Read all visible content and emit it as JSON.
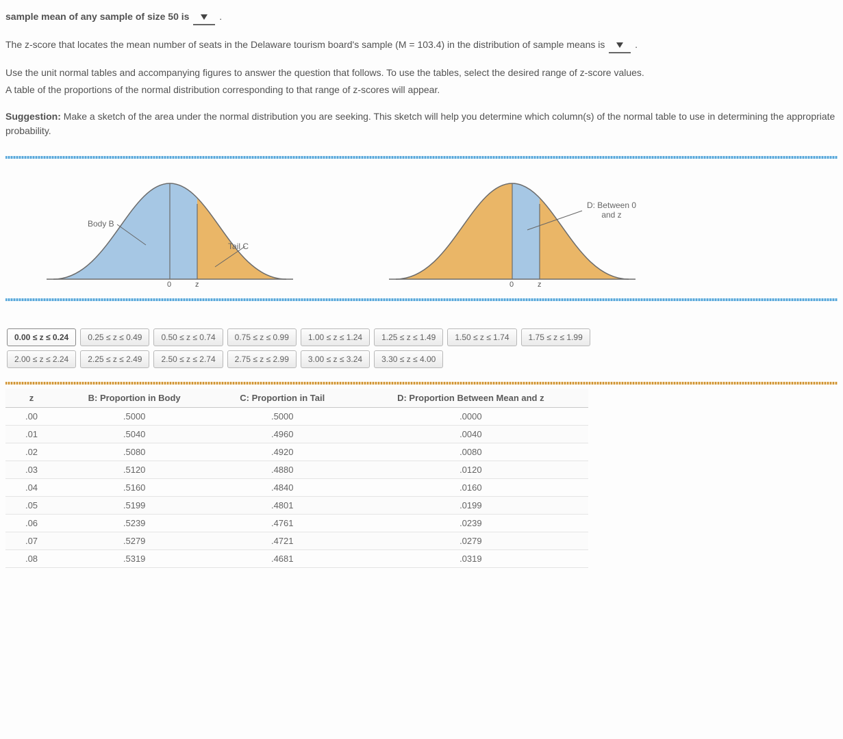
{
  "intro": {
    "line1_pre": "sample mean of any sample of size 50 is ",
    "line1_post": " .",
    "line2_pre": "The z-score that locates the mean number of seats in the Delaware tourism board's sample (M = 103.4) in the distribution of sample means is ",
    "line2_post": " .",
    "line3": "Use the unit normal tables and accompanying figures to answer the question that follows. To use the tables, select the desired range of z-score values.",
    "line4": "A table of the proportions of the normal distribution corresponding to that range of z-scores will appear.",
    "sugg_label": "Suggestion:",
    "sugg_text": " Make a sketch of the area under the normal distribution you are seeking. This sketch will help you determine which column(s) of the normal table to use in determining the appropriate probability."
  },
  "diagrams": {
    "left": {
      "body_label": "Body B",
      "tail_label": "Tail C",
      "zero_label": "0",
      "z_label": "z",
      "body_fill": "#a6c7e4",
      "tail_fill": "#eab667",
      "stroke": "#6b6b6b"
    },
    "right": {
      "between_label": "D: Between 0 and z",
      "zero_label": "0",
      "z_label": "z",
      "left_fill": "#eab667",
      "mid_fill": "#a6c7e4",
      "right_fill": "#eab667",
      "stroke": "#6b6b6b"
    }
  },
  "tabs": {
    "row1": [
      "0.00 ≤ z ≤ 0.24",
      "0.25 ≤ z ≤ 0.49",
      "0.50 ≤ z ≤ 0.74",
      "0.75 ≤ z ≤ 0.99",
      "1.00 ≤ z ≤ 1.24",
      "1.25 ≤ z ≤ 1.49",
      "1.50 ≤ z ≤ 1.74",
      "1.75 ≤ z ≤ 1.99"
    ],
    "row2": [
      "2.00 ≤ z ≤ 2.24",
      "2.25 ≤ z ≤ 2.49",
      "2.50 ≤ z ≤ 2.74",
      "2.75 ≤ z ≤ 2.99",
      "3.00 ≤ z ≤ 3.24",
      "3.30 ≤ z ≤ 4.00"
    ],
    "active": "0.00 ≤ z ≤ 0.24"
  },
  "table": {
    "headers": {
      "z": "z",
      "b": "B: Proportion in Body",
      "c": "C: Proportion in Tail",
      "d": "D: Proportion Between Mean and z"
    },
    "rows": [
      {
        "z": ".00",
        "b": ".5000",
        "c": ".5000",
        "d": ".0000"
      },
      {
        "z": ".01",
        "b": ".5040",
        "c": ".4960",
        "d": ".0040"
      },
      {
        "z": ".02",
        "b": ".5080",
        "c": ".4920",
        "d": ".0080"
      },
      {
        "z": ".03",
        "b": ".5120",
        "c": ".4880",
        "d": ".0120"
      },
      {
        "z": ".04",
        "b": ".5160",
        "c": ".4840",
        "d": ".0160"
      },
      {
        "z": ".05",
        "b": ".5199",
        "c": ".4801",
        "d": ".0199"
      },
      {
        "z": ".06",
        "b": ".5239",
        "c": ".4761",
        "d": ".0239"
      },
      {
        "z": ".07",
        "b": ".5279",
        "c": ".4721",
        "d": ".0279"
      },
      {
        "z": ".08",
        "b": ".5319",
        "c": ".4681",
        "d": ".0319"
      }
    ]
  }
}
